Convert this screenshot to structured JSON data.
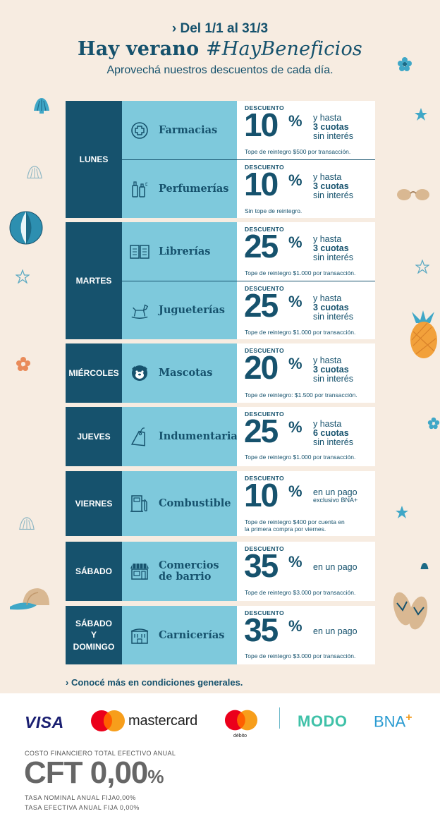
{
  "header": {
    "dates": "› Del 1/1 al 31/3",
    "title_main": "Hay verano",
    "title_tag": "#HayBeneficios",
    "subtitle": "Aprovechá nuestros descuentos de cada día."
  },
  "days": [
    {
      "day": "LUNES",
      "rows": [
        {
          "category": "Farmacias",
          "icon": "pharmacy-cross-icon",
          "label": "DESCUENTO",
          "percent": "10",
          "terms_1": "y hasta",
          "terms_2": "3 cuotas",
          "terms_3": "sin interés",
          "cap": "Tope de reintegro $500 por transacción."
        },
        {
          "category": "Perfumerías",
          "icon": "perfume-bottle-icon",
          "label": "DESCUENTO",
          "percent": "10",
          "terms_1": "y hasta",
          "terms_2": "3 cuotas",
          "terms_3": "sin interés",
          "cap": "Sin tope de reintegro."
        }
      ]
    },
    {
      "day": "MARTES",
      "rows": [
        {
          "category": "Librerías",
          "icon": "open-book-icon",
          "label": "DESCUENTO",
          "percent": "25",
          "terms_1": "y hasta",
          "terms_2": "3 cuotas",
          "terms_3": "sin interés",
          "cap": "Tope de reintegro $1.000 por transacción."
        },
        {
          "category": "Jugueterías",
          "icon": "rocking-horse-icon",
          "label": "DESCUENTO",
          "percent": "25",
          "terms_1": "y hasta",
          "terms_2": "3 cuotas",
          "terms_3": "sin interés",
          "cap": "Tope de reintegro $1.000 por transacción."
        }
      ]
    },
    {
      "day": "MIÉRCOLES",
      "rows": [
        {
          "category": "Mascotas",
          "icon": "dog-face-icon",
          "label": "DESCUENTO",
          "percent": "20",
          "terms_1": "y hasta",
          "terms_2": "3 cuotas",
          "terms_3": "sin interés",
          "cap": "Tope de reintegro: $1.500 por transacción."
        }
      ]
    },
    {
      "day": "JUEVES",
      "rows": [
        {
          "category": "Indumentaria",
          "icon": "clothing-tag-icon",
          "label": "DESCUENTO",
          "percent": "25",
          "terms_1": "y hasta",
          "terms_2": "6 cuotas",
          "terms_3": "sin interés",
          "cap": "Tope de reintegro $1.000 por transacción."
        }
      ]
    },
    {
      "day": "VIERNES",
      "rows": [
        {
          "category": "Combustible",
          "icon": "fuel-pump-icon",
          "label": "DESCUENTO",
          "percent": "10",
          "terms_1": "en un pago",
          "terms_2": "exclusivo BNA+",
          "cap_1": "Tope de reintegro $400 por cuenta en",
          "cap_2": "la primera compra por viernes."
        }
      ]
    },
    {
      "day": "SÁBADO",
      "rows": [
        {
          "category_1": "Comercios",
          "category_2": "de barrio",
          "icon": "storefront-icon",
          "label": "DESCUENTO",
          "percent": "35",
          "terms_1": "en un pago",
          "cap": "Tope de reintegro $3.000 por transacción."
        }
      ]
    },
    {
      "day_1": "SÁBADO",
      "day_2": "Y",
      "day_3": "DOMINGO",
      "rows": [
        {
          "category": "Carnicerías",
          "icon": "butcher-shop-icon",
          "label": "DESCUENTO",
          "percent": "35",
          "terms_1": "en un pago",
          "cap": "Tope de reintegro $3.000 por transacción."
        }
      ]
    }
  ],
  "percent_sign": "%",
  "more_link": "› Conocé más en condiciones generales.",
  "footer": {
    "visa": "VISA",
    "mastercard": "mastercard",
    "debito": "débito",
    "modo": "MODO",
    "bna": "BNA",
    "bna_plus": "+",
    "cft_label": "COSTO FINANCIERO TOTAL EFECTIVO ANUAL",
    "cft_value": "CFT 0,00",
    "cft_pct": "%",
    "tna": "TASA NOMINAL ANUAL FIJA0,00%",
    "tea": "TASA EFECTIVA ANUAL FIJA 0,00%"
  },
  "colors": {
    "navy": "#16526d",
    "light_blue": "#7ec9dc",
    "background": "#f7ece1"
  }
}
